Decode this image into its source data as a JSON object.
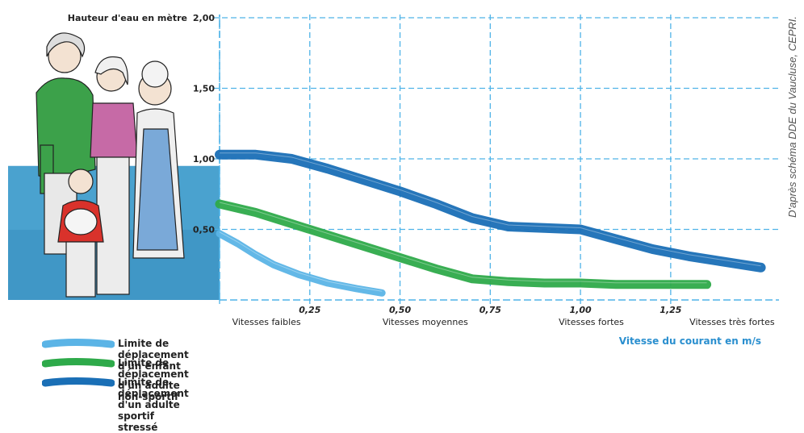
{
  "chart_data": {
    "type": "area",
    "ylabel": "Hauteur d'eau en mètre",
    "xlabel": "Vitesse du courant en m/s",
    "xlim": [
      0,
      1.55
    ],
    "ylim": [
      0,
      2.0
    ],
    "x_ticks": [
      "0,25",
      "0,50",
      "0,75",
      "1,00",
      "1,25"
    ],
    "y_ticks": [
      "0,50",
      "1,00",
      "1,50",
      "2,00"
    ],
    "speed_zones": [
      "Vitesses faibles",
      "Vitesses moyennes",
      "Vitesses fortes",
      "Vitesses très fortes"
    ],
    "grid": true,
    "series": [
      {
        "name": "Limite de déplacement d'un enfant",
        "color": "#5bb4e6",
        "x": [
          0.0,
          0.05,
          0.1,
          0.15,
          0.22,
          0.3,
          0.38,
          0.45
        ],
        "y": [
          0.47,
          0.4,
          0.32,
          0.25,
          0.18,
          0.12,
          0.08,
          0.05
        ]
      },
      {
        "name": "Limite de déplacement d'un adulte non-sportif",
        "color": "#2eaa4a",
        "x": [
          0.0,
          0.1,
          0.2,
          0.3,
          0.4,
          0.5,
          0.6,
          0.7,
          0.8,
          0.9,
          1.0,
          1.1,
          1.2,
          1.3,
          1.35
        ],
        "y": [
          0.68,
          0.62,
          0.54,
          0.46,
          0.38,
          0.3,
          0.22,
          0.15,
          0.13,
          0.12,
          0.12,
          0.11,
          0.11,
          0.11,
          0.11
        ]
      },
      {
        "name": "Limite de déplacement d'un adulte sportif stressé",
        "color": "#1a6fb6",
        "x": [
          0.0,
          0.1,
          0.2,
          0.3,
          0.4,
          0.5,
          0.6,
          0.7,
          0.8,
          0.9,
          1.0,
          1.1,
          1.2,
          1.3,
          1.4,
          1.5
        ],
        "y": [
          1.03,
          1.03,
          1.0,
          0.93,
          0.85,
          0.77,
          0.68,
          0.58,
          0.52,
          0.51,
          0.5,
          0.43,
          0.36,
          0.31,
          0.27,
          0.23
        ]
      }
    ],
    "water_level": 0.95,
    "credit": "D'après schéma DDE du Vaucluse, CEPRI."
  }
}
